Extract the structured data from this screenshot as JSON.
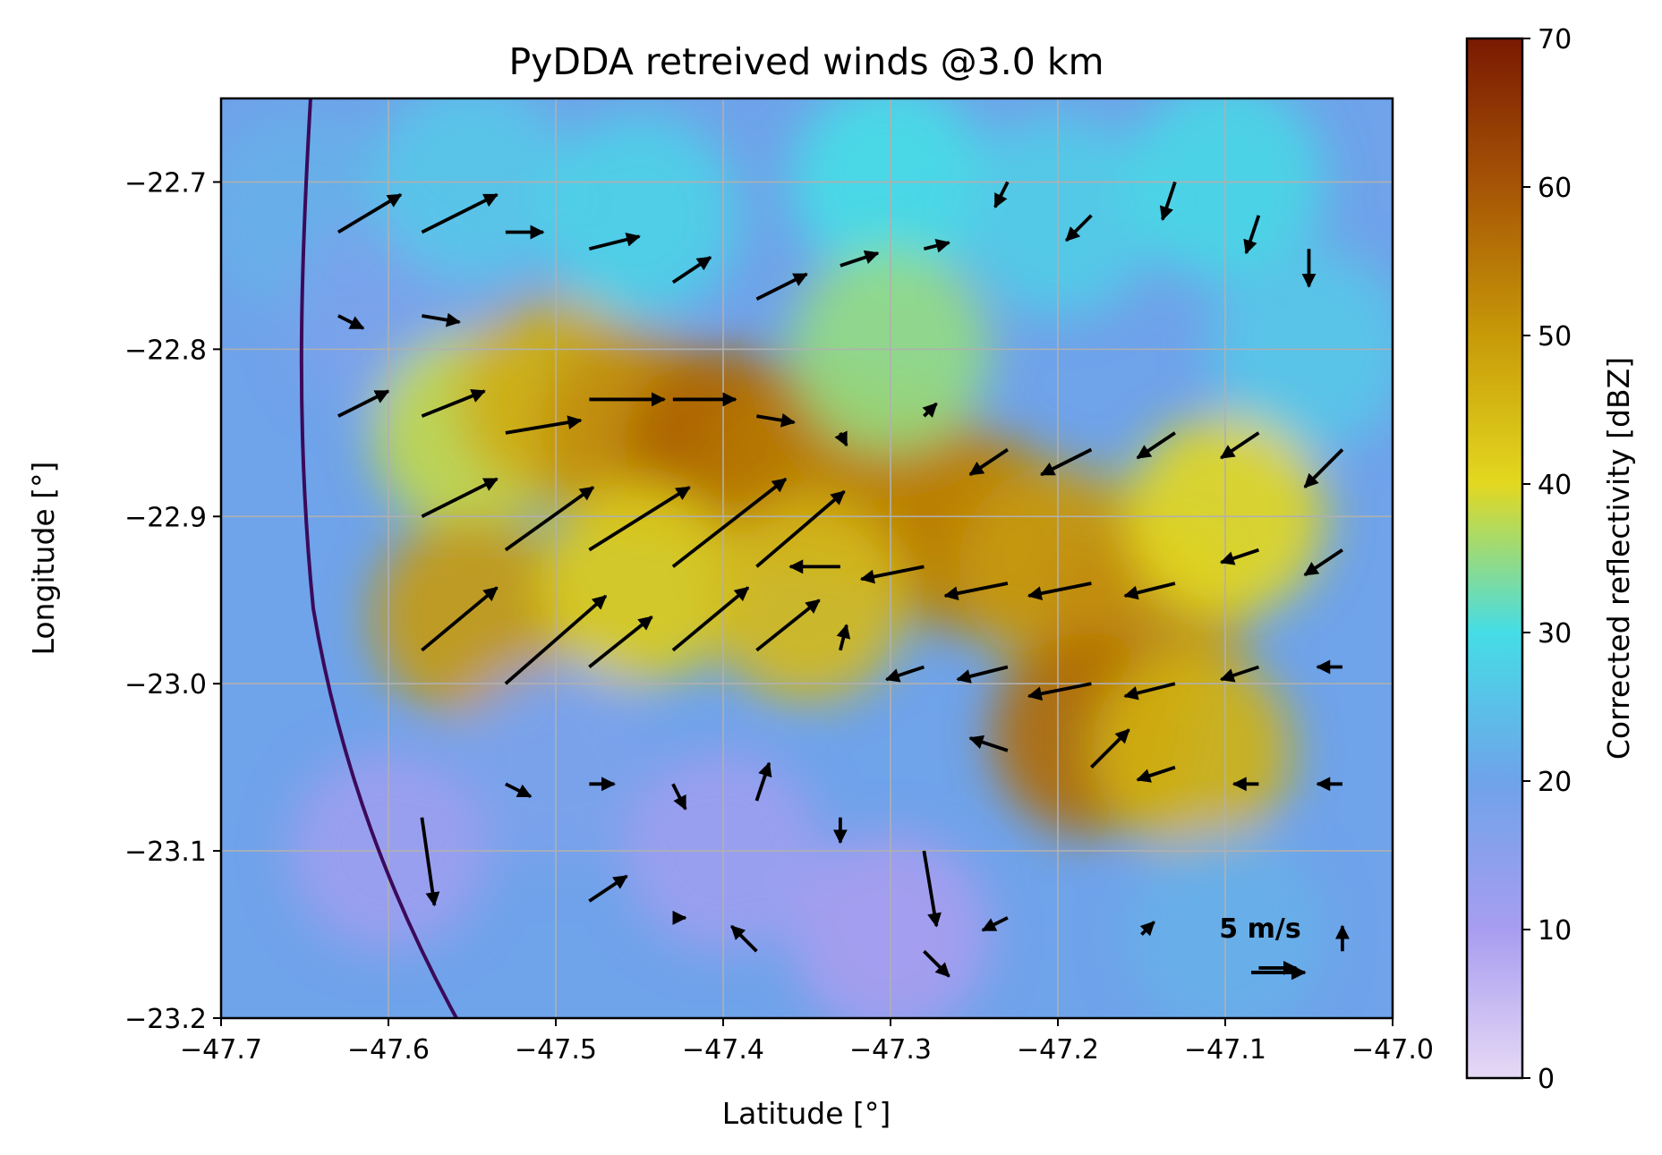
{
  "chart_data": {
    "type": "heatmap",
    "title": "PyDDA retreived winds @3.0 km",
    "xlabel": "Latitude [°]",
    "ylabel": "Longitude [°]",
    "xlim": [
      -47.7,
      -47.0
    ],
    "ylim": [
      -23.2,
      -22.65
    ],
    "xticks": [
      "−47.7",
      "−47.6",
      "−47.5",
      "−47.4",
      "−47.3",
      "−47.2",
      "−47.1",
      "−47.0"
    ],
    "xtick_values": [
      -47.7,
      -47.6,
      -47.5,
      -47.4,
      -47.3,
      -47.2,
      -47.1,
      -47.0
    ],
    "yticks": [
      "−22.7",
      "−22.8",
      "−22.9",
      "−23.0",
      "−23.1",
      "−23.2"
    ],
    "ytick_values": [
      -22.7,
      -22.8,
      -22.9,
      -23.0,
      -23.1,
      -23.2
    ],
    "grid": true,
    "colorbar": {
      "label": "Corrected reflectivity [dBZ]",
      "range": [
        0,
        70
      ],
      "ticks": [
        "0",
        "10",
        "20",
        "30",
        "40",
        "50",
        "60",
        "70"
      ],
      "tick_values": [
        0,
        10,
        20,
        30,
        40,
        50,
        60,
        70
      ],
      "stops": [
        {
          "v": 0,
          "color": "#e6d9f5"
        },
        {
          "v": 10,
          "color": "#a89df0"
        },
        {
          "v": 20,
          "color": "#6fa3ea"
        },
        {
          "v": 30,
          "color": "#45dde6"
        },
        {
          "v": 40,
          "color": "#e3d820"
        },
        {
          "v": 50,
          "color": "#c79a08"
        },
        {
          "v": 60,
          "color": "#a75506"
        },
        {
          "v": 70,
          "color": "#7a1a02"
        }
      ]
    },
    "reflectivity_cells": [
      {
        "lon": -47.65,
        "lat": -22.72,
        "dbz": 22
      },
      {
        "lon": -47.6,
        "lat": -22.78,
        "dbz": 18
      },
      {
        "lon": -47.55,
        "lat": -22.7,
        "dbz": 26
      },
      {
        "lon": -47.45,
        "lat": -22.72,
        "dbz": 28
      },
      {
        "lon": -47.3,
        "lat": -22.7,
        "dbz": 30
      },
      {
        "lon": -47.2,
        "lat": -22.72,
        "dbz": 27
      },
      {
        "lon": -47.1,
        "lat": -22.7,
        "dbz": 29
      },
      {
        "lon": -47.05,
        "lat": -22.8,
        "dbz": 26
      },
      {
        "lon": -47.55,
        "lat": -22.85,
        "dbz": 38
      },
      {
        "lon": -47.5,
        "lat": -22.83,
        "dbz": 47
      },
      {
        "lon": -47.45,
        "lat": -22.85,
        "dbz": 52
      },
      {
        "lon": -47.4,
        "lat": -22.86,
        "dbz": 58
      },
      {
        "lon": -47.35,
        "lat": -22.87,
        "dbz": 55
      },
      {
        "lon": -47.3,
        "lat": -22.88,
        "dbz": 53
      },
      {
        "lon": -47.25,
        "lat": -22.91,
        "dbz": 54
      },
      {
        "lon": -47.2,
        "lat": -22.93,
        "dbz": 50
      },
      {
        "lon": -47.15,
        "lat": -22.96,
        "dbz": 52
      },
      {
        "lon": -47.18,
        "lat": -23.03,
        "dbz": 57
      },
      {
        "lon": -47.12,
        "lat": -23.04,
        "dbz": 46
      },
      {
        "lon": -47.55,
        "lat": -22.96,
        "dbz": 50
      },
      {
        "lon": -47.45,
        "lat": -22.94,
        "dbz": 42
      },
      {
        "lon": -47.35,
        "lat": -22.95,
        "dbz": 45
      },
      {
        "lon": -47.1,
        "lat": -22.9,
        "dbz": 40
      },
      {
        "lon": -47.3,
        "lat": -22.8,
        "dbz": 35
      },
      {
        "lon": -47.5,
        "lat": -23.05,
        "dbz": 18
      },
      {
        "lon": -47.6,
        "lat": -23.1,
        "dbz": 12
      },
      {
        "lon": -47.4,
        "lat": -23.1,
        "dbz": 12
      },
      {
        "lon": -47.3,
        "lat": -23.15,
        "dbz": 10
      },
      {
        "lon": -47.1,
        "lat": -23.15,
        "dbz": 22
      }
    ],
    "wind_vectors": [
      {
        "lon": -47.63,
        "lat": -22.73,
        "u": 5,
        "v": 3
      },
      {
        "lon": -47.58,
        "lat": -22.73,
        "u": 6,
        "v": 3
      },
      {
        "lon": -47.63,
        "lat": -22.78,
        "u": 2,
        "v": -1
      },
      {
        "lon": -47.58,
        "lat": -22.78,
        "u": 3,
        "v": -0.5
      },
      {
        "lon": -47.53,
        "lat": -22.73,
        "u": 3,
        "v": 0
      },
      {
        "lon": -47.48,
        "lat": -22.74,
        "u": 4,
        "v": 1
      },
      {
        "lon": -47.43,
        "lat": -22.76,
        "u": 3,
        "v": 2
      },
      {
        "lon": -47.38,
        "lat": -22.77,
        "u": 4,
        "v": 2
      },
      {
        "lon": -47.33,
        "lat": -22.75,
        "u": 3,
        "v": 1
      },
      {
        "lon": -47.28,
        "lat": -22.74,
        "u": 2,
        "v": 0.5
      },
      {
        "lon": -47.23,
        "lat": -22.7,
        "u": -1,
        "v": -2
      },
      {
        "lon": -47.18,
        "lat": -22.72,
        "u": -2,
        "v": -2
      },
      {
        "lon": -47.13,
        "lat": -22.7,
        "u": -1,
        "v": -3
      },
      {
        "lon": -47.08,
        "lat": -22.72,
        "u": -1,
        "v": -3
      },
      {
        "lon": -47.05,
        "lat": -22.74,
        "u": 0,
        "v": -3
      },
      {
        "lon": -47.63,
        "lat": -22.84,
        "u": 4,
        "v": 2
      },
      {
        "lon": -47.58,
        "lat": -22.84,
        "u": 5,
        "v": 2
      },
      {
        "lon": -47.53,
        "lat": -22.85,
        "u": 6,
        "v": 1
      },
      {
        "lon": -47.48,
        "lat": -22.83,
        "u": 6,
        "v": 0
      },
      {
        "lon": -47.43,
        "lat": -22.83,
        "u": 5,
        "v": 0
      },
      {
        "lon": -47.38,
        "lat": -22.84,
        "u": 3,
        "v": -0.5
      },
      {
        "lon": -47.33,
        "lat": -22.85,
        "u": 0.5,
        "v": -1
      },
      {
        "lon": -47.28,
        "lat": -22.84,
        "u": 1,
        "v": 1
      },
      {
        "lon": -47.23,
        "lat": -22.86,
        "u": -3,
        "v": -2
      },
      {
        "lon": -47.18,
        "lat": -22.86,
        "u": -4,
        "v": -2
      },
      {
        "lon": -47.13,
        "lat": -22.85,
        "u": -3,
        "v": -2
      },
      {
        "lon": -47.08,
        "lat": -22.85,
        "u": -3,
        "v": -2
      },
      {
        "lon": -47.03,
        "lat": -22.86,
        "u": -3,
        "v": -3
      },
      {
        "lon": -47.58,
        "lat": -22.9,
        "u": 6,
        "v": 3
      },
      {
        "lon": -47.53,
        "lat": -22.92,
        "u": 7,
        "v": 5
      },
      {
        "lon": -47.48,
        "lat": -22.92,
        "u": 8,
        "v": 5
      },
      {
        "lon": -47.43,
        "lat": -22.93,
        "u": 9,
        "v": 7
      },
      {
        "lon": -47.38,
        "lat": -22.93,
        "u": 7,
        "v": 6
      },
      {
        "lon": -47.33,
        "lat": -22.93,
        "u": -4,
        "v": 0
      },
      {
        "lon": -47.28,
        "lat": -22.93,
        "u": -5,
        "v": -1
      },
      {
        "lon": -47.23,
        "lat": -22.94,
        "u": -5,
        "v": -1
      },
      {
        "lon": -47.18,
        "lat": -22.94,
        "u": -5,
        "v": -1
      },
      {
        "lon": -47.13,
        "lat": -22.94,
        "u": -4,
        "v": -1
      },
      {
        "lon": -47.08,
        "lat": -22.92,
        "u": -3,
        "v": -1
      },
      {
        "lon": -47.03,
        "lat": -22.92,
        "u": -3,
        "v": -2
      },
      {
        "lon": -47.58,
        "lat": -22.98,
        "u": 6,
        "v": 5
      },
      {
        "lon": -47.53,
        "lat": -23.0,
        "u": 8,
        "v": 7
      },
      {
        "lon": -47.48,
        "lat": -22.99,
        "u": 5,
        "v": 4
      },
      {
        "lon": -47.43,
        "lat": -22.98,
        "u": 6,
        "v": 5
      },
      {
        "lon": -47.38,
        "lat": -22.98,
        "u": 5,
        "v": 4
      },
      {
        "lon": -47.33,
        "lat": -22.98,
        "u": 0.5,
        "v": 2
      },
      {
        "lon": -47.28,
        "lat": -22.99,
        "u": -3,
        "v": -1
      },
      {
        "lon": -47.23,
        "lat": -22.99,
        "u": -4,
        "v": -1
      },
      {
        "lon": -47.18,
        "lat": -23.0,
        "u": -5,
        "v": -1
      },
      {
        "lon": -47.13,
        "lat": -23.0,
        "u": -4,
        "v": -1
      },
      {
        "lon": -47.08,
        "lat": -22.99,
        "u": -3,
        "v": -1
      },
      {
        "lon": -47.03,
        "lat": -22.99,
        "u": -2,
        "v": 0
      },
      {
        "lon": -47.58,
        "lat": -23.08,
        "u": 1,
        "v": -7
      },
      {
        "lon": -47.53,
        "lat": -23.06,
        "u": 2,
        "v": -1
      },
      {
        "lon": -47.48,
        "lat": -23.06,
        "u": 2,
        "v": 0
      },
      {
        "lon": -47.43,
        "lat": -23.06,
        "u": 1,
        "v": -2
      },
      {
        "lon": -47.38,
        "lat": -23.07,
        "u": 1,
        "v": 3
      },
      {
        "lon": -47.33,
        "lat": -23.08,
        "u": 0,
        "v": -2
      },
      {
        "lon": -47.28,
        "lat": -23.1,
        "u": 1,
        "v": -6
      },
      {
        "lon": -47.23,
        "lat": -23.04,
        "u": -3,
        "v": 1
      },
      {
        "lon": -47.18,
        "lat": -23.05,
        "u": 3,
        "v": 3
      },
      {
        "lon": -47.13,
        "lat": -23.05,
        "u": -3,
        "v": -1
      },
      {
        "lon": -47.08,
        "lat": -23.06,
        "u": -2,
        "v": 0
      },
      {
        "lon": -47.03,
        "lat": -23.06,
        "u": -2,
        "v": 0
      },
      {
        "lon": -47.48,
        "lat": -23.13,
        "u": 3,
        "v": 2
      },
      {
        "lon": -47.43,
        "lat": -23.14,
        "u": 1,
        "v": 0
      },
      {
        "lon": -47.38,
        "lat": -23.16,
        "u": -2,
        "v": 2
      },
      {
        "lon": -47.28,
        "lat": -23.16,
        "u": 2,
        "v": -2
      },
      {
        "lon": -47.23,
        "lat": -23.14,
        "u": -2,
        "v": -1
      },
      {
        "lon": -47.15,
        "lat": -23.15,
        "u": 1,
        "v": 1
      },
      {
        "lon": -47.08,
        "lat": -23.17,
        "u": 3,
        "v": 0
      },
      {
        "lon": -47.03,
        "lat": -23.16,
        "u": 0,
        "v": 2
      }
    ],
    "quiver_key": {
      "label": "5 m/s",
      "lon": -47.07,
      "lat": -23.145
    },
    "radar_range_ring": {
      "center_lon": -47.05,
      "center_lat": -22.85
    }
  }
}
